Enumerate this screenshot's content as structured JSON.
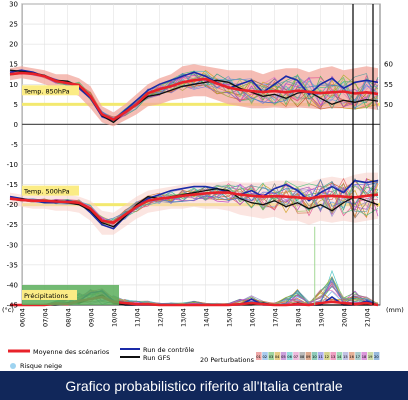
{
  "caption": "Grafico probabilistico riferito all'Italia centrale",
  "chart_data": {
    "type": "line",
    "panels": [
      {
        "label": "Temp. 850hPa",
        "ylim": [
          0,
          15
        ],
        "left_ticks": [
          0,
          5,
          10,
          15
        ],
        "right_ticks": [
          50,
          55,
          60
        ],
        "mean": [
          12.5,
          12.8,
          12.6,
          12.0,
          10.8,
          10.3,
          9.8,
          7.0,
          2.5,
          1.2,
          3.0,
          5.0,
          7.8,
          8.8,
          9.5,
          10.5,
          11.0,
          11.3,
          10.2,
          9.2,
          8.6,
          8.3,
          8.1,
          8.3,
          8.0,
          8.4,
          8.1,
          7.8,
          8.0,
          8.2,
          7.7,
          8.0,
          7.6
        ],
        "control": [
          13.0,
          13.5,
          13.0,
          12.0,
          11.0,
          10.5,
          9.0,
          6.5,
          2.0,
          1.0,
          3.5,
          6.0,
          8.5,
          10.0,
          11.0,
          12.0,
          13.0,
          12.0,
          10.5,
          9.0,
          10.0,
          11.0,
          8.0,
          10.0,
          12.0,
          11.0,
          7.5,
          10.0,
          11.5,
          9.0,
          10.5,
          11.0,
          10.5
        ],
        "gfs": [
          13.5,
          13.2,
          12.8,
          12.2,
          11.0,
          10.8,
          9.5,
          6.8,
          2.2,
          0.5,
          3.0,
          4.8,
          7.0,
          7.5,
          8.5,
          9.5,
          10.0,
          10.5,
          11.0,
          10.5,
          9.0,
          8.0,
          7.0,
          7.5,
          6.5,
          7.8,
          8.2,
          6.5,
          5.0,
          6.0,
          5.5,
          6.2,
          5.8
        ],
        "range_low": [
          11.0,
          11.5,
          11.0,
          10.0,
          9.0,
          8.5,
          7.0,
          4.0,
          0.5,
          -0.5,
          1.0,
          2.5,
          4.5,
          5.0,
          6.0,
          6.5,
          7.0,
          7.0,
          6.0,
          5.0,
          4.5,
          4.0,
          4.0,
          4.2,
          4.0,
          4.2,
          4.0,
          3.8,
          4.0,
          4.0,
          3.8,
          4.0,
          3.6
        ],
        "range_high": [
          14.0,
          14.5,
          14.0,
          13.5,
          12.5,
          12.5,
          11.5,
          9.5,
          4.5,
          3.0,
          5.0,
          7.5,
          10.0,
          11.5,
          12.5,
          14.5,
          15.0,
          14.5,
          14.0,
          13.5,
          13.5,
          13.5,
          12.5,
          13.5,
          14.0,
          14.0,
          13.0,
          14.0,
          14.5,
          13.5,
          14.0,
          14.5,
          14.0
        ]
      },
      {
        "label": "Temp. 500hPa",
        "ylim": [
          -30,
          -10
        ],
        "left_ticks": [
          -30,
          -25,
          -20,
          -15,
          -10
        ],
        "mean": [
          -18.5,
          -18.8,
          -19.0,
          -19.0,
          -19.2,
          -19.3,
          -19.5,
          -21.0,
          -24.0,
          -24.5,
          -22.5,
          -20.5,
          -19.0,
          -18.5,
          -18.2,
          -17.8,
          -17.5,
          -17.2,
          -17.0,
          -17.0,
          -17.5,
          -17.8,
          -18.0,
          -17.9,
          -18.0,
          -18.2,
          -18.5,
          -18.0,
          -17.8,
          -18.0,
          -18.2,
          -17.8,
          -17.5
        ],
        "control": [
          -18.0,
          -18.5,
          -19.0,
          -19.5,
          -19.5,
          -19.0,
          -19.5,
          -22.0,
          -25.0,
          -26.0,
          -23.0,
          -20.5,
          -18.5,
          -17.5,
          -16.5,
          -16.0,
          -15.5,
          -15.5,
          -16.0,
          -17.0,
          -17.5,
          -16.5,
          -18.0,
          -16.0,
          -15.0,
          -16.5,
          -19.0,
          -17.0,
          -15.5,
          -17.0,
          -14.0,
          -14.5,
          -14.0
        ],
        "gfs": [
          -18.5,
          -18.5,
          -19.0,
          -19.2,
          -19.0,
          -19.5,
          -20.0,
          -21.5,
          -24.5,
          -25.5,
          -23.0,
          -20.0,
          -18.0,
          -18.5,
          -18.0,
          -17.5,
          -17.0,
          -16.5,
          -16.0,
          -16.5,
          -18.5,
          -19.5,
          -20.0,
          -19.0,
          -20.5,
          -19.5,
          -21.0,
          -20.0,
          -21.5,
          -19.5,
          -18.0,
          -19.0,
          -20.0
        ],
        "range_low": [
          -20.0,
          -20.5,
          -21.0,
          -21.0,
          -21.5,
          -21.5,
          -22.0,
          -24.0,
          -27.5,
          -27.5,
          -25.5,
          -23.5,
          -22.0,
          -21.5,
          -21.0,
          -21.0,
          -20.5,
          -21.0,
          -21.0,
          -21.5,
          -22.5,
          -23.0,
          -23.5,
          -23.0,
          -24.0,
          -24.0,
          -25.0,
          -24.0,
          -24.5,
          -24.0,
          -24.5,
          -24.0,
          -23.5
        ],
        "range_high": [
          -17.0,
          -17.5,
          -17.5,
          -17.5,
          -17.5,
          -17.5,
          -18.0,
          -19.0,
          -21.5,
          -22.0,
          -20.0,
          -18.0,
          -16.5,
          -16.0,
          -15.5,
          -15.0,
          -14.5,
          -14.5,
          -14.5,
          -14.0,
          -14.5,
          -14.5,
          -14.5,
          -14.0,
          -14.0,
          -14.0,
          -14.5,
          -13.5,
          -13.0,
          -13.5,
          -12.5,
          -12.0,
          -12.0
        ]
      },
      {
        "label": "Précipitations",
        "ylim": [
          -45,
          -35
        ],
        "left_ticks": [
          -45,
          -40,
          -35
        ],
        "mean": [
          -45,
          -45,
          -45,
          -45,
          -44.6,
          -44.8,
          -44,
          -43.5,
          -43.0,
          -44.2,
          -44.5,
          -44.8,
          -44.8,
          -45,
          -45,
          -45,
          -45,
          -45,
          -45,
          -45,
          -44.8,
          -44.5,
          -44.8,
          -45,
          -45,
          -44.8,
          -45,
          -44.5,
          -44.2,
          -44.5,
          -44.8,
          -44.5,
          -45
        ],
        "control": [
          -45,
          -45,
          -45,
          -45,
          -44.8,
          -44.5,
          -44.0,
          -42.0,
          -41.5,
          -44.0,
          -45,
          -45,
          -45,
          -45,
          -45,
          -45,
          -45,
          -45,
          -45,
          -45,
          -45,
          -43.5,
          -45,
          -45,
          -45,
          -45,
          -45,
          -45,
          -43.0,
          -45,
          -45,
          -44.0,
          -45
        ],
        "gfs": [
          -45,
          -45,
          -45,
          -45,
          -45,
          -44.5,
          -44.5,
          -43.5,
          -42.5,
          -44.5,
          -45,
          -45,
          -45,
          -45,
          -45,
          -45,
          -45,
          -45,
          -45,
          -45,
          -45,
          -45,
          -44.5,
          -45,
          -45,
          -44.5,
          -45,
          -45,
          -45,
          -45,
          -45,
          -45,
          -45
        ],
        "range_high": [
          -45,
          -45,
          -45,
          -45,
          -44.0,
          -43.0,
          -42.0,
          -41.0,
          -40.5,
          -42.5,
          -43.5,
          -44.0,
          -44.0,
          -44.5,
          -44.5,
          -44.5,
          -44.0,
          -44.5,
          -44.5,
          -44.5,
          -43.5,
          -42.5,
          -44.0,
          -44.5,
          -43.0,
          -41.0,
          -44.0,
          -41.0,
          -36.5,
          -43.0,
          -41.5,
          -43.0,
          -44.5
        ],
        "spike_x": 26.5,
        "spike_y": -25.5
      }
    ],
    "y_ticks_left_all": [
      30,
      25,
      20,
      15,
      10,
      5,
      0,
      -5,
      -10,
      -15,
      -20,
      -25,
      -30,
      -35,
      -40,
      -45
    ],
    "y_ticks_right": [
      60,
      55,
      50
    ],
    "dates": [
      "06/04",
      "07/04",
      "08/04",
      "09/04",
      "10/04",
      "11/04",
      "12/04",
      "13/04",
      "14/04",
      "15/04",
      "16/04",
      "17/04",
      "18/04",
      "19/04",
      "20/04",
      "21/04"
    ],
    "left_unit": "(°c)",
    "right_unit": "(mm)",
    "legend": {
      "mean": "Moyenne des scénarios",
      "control": "Run de contrôle",
      "gfs": "Run GFS",
      "perturbations": "20 Perturbations",
      "snow": "Risque neige"
    },
    "perturbation_numbers": [
      "01",
      "02",
      "03",
      "04",
      "05",
      "06",
      "07",
      "08",
      "09",
      "10",
      "11",
      "12",
      "13",
      "14",
      "15",
      "16",
      "17",
      "18",
      "19",
      "20"
    ],
    "colors": {
      "mean": "#e8222a",
      "control": "#1a2aa8",
      "gfs": "#101010",
      "range_fill": "#f2a79c",
      "band": "#f3e96f",
      "label_box": "#fbec85",
      "precip_box": "#5aae5a",
      "snow": "#9ed3f0",
      "caption_bg": "#11275a"
    }
  }
}
